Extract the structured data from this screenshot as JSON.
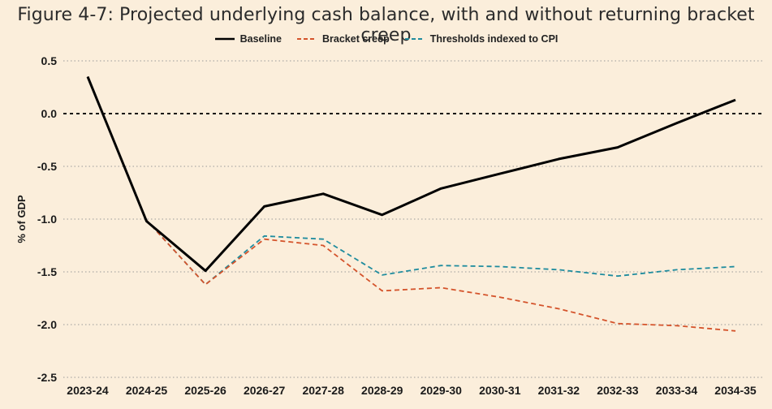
{
  "chart_data": {
    "type": "line",
    "title": "Figure 4-7: Projected underlying cash balance, with and without returning bracket creep",
    "xlabel": "",
    "ylabel": "% of GDP",
    "ylim": [
      -2.5,
      0.5
    ],
    "yticks": [
      0.5,
      0.0,
      -0.5,
      -1.0,
      -1.5,
      -2.0,
      -2.5
    ],
    "ytick_labels": [
      "0.5",
      "0.0",
      "-0.5",
      "-1.0",
      "-1.5",
      "-2.0",
      "-2.5"
    ],
    "categories": [
      "2023-24",
      "2024-25",
      "2025-26",
      "2026-27",
      "2027-28",
      "2028-29",
      "2029-30",
      "2030-31",
      "2031-32",
      "2032-33",
      "2033-34",
      "2034-35"
    ],
    "grid": "horizontal dotted",
    "legend_position": "top-center",
    "series": [
      {
        "name": "Baseline",
        "color": "#000000",
        "style": "solid",
        "values": [
          0.35,
          -1.02,
          -1.49,
          -0.88,
          -0.76,
          -0.96,
          -0.71,
          -0.57,
          -0.43,
          -0.32,
          -0.09,
          0.13
        ]
      },
      {
        "name": "Bracket creep",
        "color": "#d4532b",
        "style": "dashed",
        "values": [
          0.35,
          -1.01,
          -1.62,
          -1.19,
          -1.25,
          -1.68,
          -1.65,
          -1.74,
          -1.85,
          -1.99,
          -2.01,
          -2.06
        ]
      },
      {
        "name": "Thresholds indexed to CPI",
        "color": "#1f8c9e",
        "style": "dashed",
        "values": [
          0.35,
          -1.01,
          -1.62,
          -1.16,
          -1.19,
          -1.53,
          -1.44,
          -1.45,
          -1.48,
          -1.54,
          -1.48,
          -1.45
        ]
      }
    ]
  }
}
